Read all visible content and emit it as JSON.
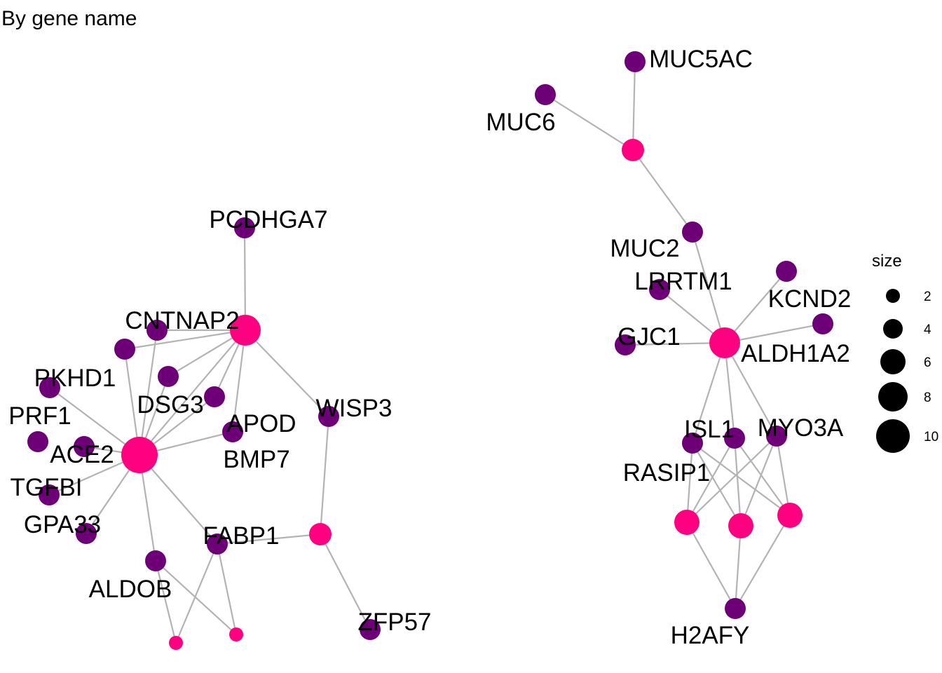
{
  "title": "By gene name",
  "colors": {
    "gene": "#6E0077",
    "category": "#FF0080",
    "edge": "#B3B3B3",
    "legend": "#000000"
  },
  "legend": {
    "title": "size",
    "items": [
      "2",
      "4",
      "6",
      "8",
      "10"
    ]
  },
  "genes": [
    "PCDHGA7",
    "CNTNAP2",
    "PKHD1",
    "DSG3",
    "PRF1",
    "APOD",
    "WISP3",
    "ACE2",
    "BMP7",
    "TGFBI",
    "GPA33",
    "FABP1",
    "ALDOB",
    "ZFP57",
    "MUC5AC",
    "MUC6",
    "MUC2",
    "LRRTM1",
    "KCND2",
    "GJC1",
    "ALDH1A2",
    "ISL1",
    "MYO3A",
    "RASIP1",
    "H2AFY"
  ]
}
